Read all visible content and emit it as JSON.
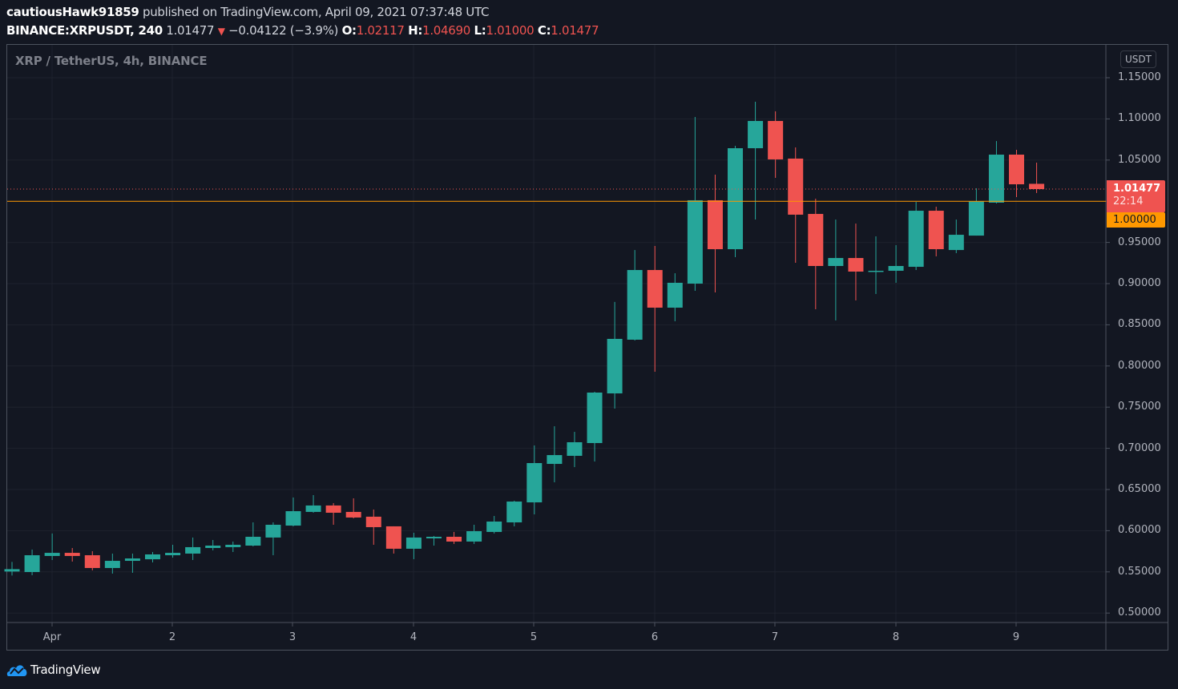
{
  "header": {
    "publisher": "cautiousHawk91859",
    "published_text": "published on TradingView.com, April 09, 2021 07:37:48 UTC",
    "symbol": "BINANCE:XRPUSDT, 240",
    "last_price": "1.01477",
    "change_icon": "triangle-down-icon",
    "change": "−0.04122 (−3.9%)",
    "o_label": "O:",
    "o_value": "1.02117",
    "h_label": "H:",
    "h_value": "1.04690",
    "l_label": "L:",
    "l_value": "1.01000",
    "c_label": "C:",
    "c_value": "1.01477"
  },
  "chart": {
    "title": "XRP / TetherUS, 4h, BINANCE",
    "currency": "USDT",
    "current_price_tag": "1.01477",
    "countdown": "22:14",
    "level_tag": "1.00000",
    "colors": {
      "background": "#131722",
      "grid": "#1e222d",
      "up": "#26a69a",
      "down": "#ef5350",
      "level_line": "#ff9800",
      "axis_text": "#b2b5be"
    }
  },
  "footer": {
    "brand": "TradingView",
    "brand_icon": "tradingview-cloud-icon"
  },
  "chart_data": {
    "type": "candlestick",
    "title": "XRP / TetherUS, 4h, BINANCE",
    "xlabel": "",
    "ylabel": "USDT",
    "ylim": [
      0.49,
      1.16
    ],
    "y_ticks": [
      "1.15000",
      "1.10000",
      "1.05000",
      "1.00000",
      "0.95000",
      "0.90000",
      "0.85000",
      "0.80000",
      "0.75000",
      "0.70000",
      "0.65000",
      "0.60000",
      "0.55000",
      "0.50000"
    ],
    "x_ticks": [
      "Apr",
      "2",
      "3",
      "4",
      "5",
      "6",
      "7",
      "8",
      "9"
    ],
    "grid": true,
    "horizontal_line": 1.0,
    "current_price": 1.01477,
    "candles": [
      {
        "o": 0.5504,
        "h": 0.5621,
        "l": 0.5455,
        "c": 0.5533
      },
      {
        "o": 0.5498,
        "h": 0.5771,
        "l": 0.5459,
        "c": 0.5702
      },
      {
        "o": 0.5693,
        "h": 0.5966,
        "l": 0.5644,
        "c": 0.5731
      },
      {
        "o": 0.5731,
        "h": 0.579,
        "l": 0.5625,
        "c": 0.5693
      },
      {
        "o": 0.5702,
        "h": 0.5751,
        "l": 0.5518,
        "c": 0.5547
      },
      {
        "o": 0.5547,
        "h": 0.5722,
        "l": 0.5479,
        "c": 0.5634
      },
      {
        "o": 0.5634,
        "h": 0.5722,
        "l": 0.5489,
        "c": 0.5663
      },
      {
        "o": 0.5653,
        "h": 0.5741,
        "l": 0.5615,
        "c": 0.5712
      },
      {
        "o": 0.5702,
        "h": 0.5829,
        "l": 0.5673,
        "c": 0.5731
      },
      {
        "o": 0.5722,
        "h": 0.5917,
        "l": 0.5644,
        "c": 0.58
      },
      {
        "o": 0.579,
        "h": 0.5887,
        "l": 0.5761,
        "c": 0.5819
      },
      {
        "o": 0.58,
        "h": 0.5868,
        "l": 0.5741,
        "c": 0.5829
      },
      {
        "o": 0.5819,
        "h": 0.6101,
        "l": 0.5809,
        "c": 0.5926
      },
      {
        "o": 0.5917,
        "h": 0.6101,
        "l": 0.5702,
        "c": 0.6072
      },
      {
        "o": 0.6062,
        "h": 0.6403,
        "l": 0.6053,
        "c": 0.6237
      },
      {
        "o": 0.6228,
        "h": 0.6432,
        "l": 0.6218,
        "c": 0.6306
      },
      {
        "o": 0.6306,
        "h": 0.6335,
        "l": 0.6072,
        "c": 0.6218
      },
      {
        "o": 0.6228,
        "h": 0.6393,
        "l": 0.615,
        "c": 0.616
      },
      {
        "o": 0.617,
        "h": 0.6257,
        "l": 0.5829,
        "c": 0.6043
      },
      {
        "o": 0.6053,
        "h": 0.6053,
        "l": 0.5722,
        "c": 0.5781
      },
      {
        "o": 0.5781,
        "h": 0.5975,
        "l": 0.5654,
        "c": 0.5917
      },
      {
        "o": 0.5907,
        "h": 0.5936,
        "l": 0.5819,
        "c": 0.5926
      },
      {
        "o": 0.5926,
        "h": 0.5985,
        "l": 0.5839,
        "c": 0.5868
      },
      {
        "o": 0.5868,
        "h": 0.6072,
        "l": 0.5839,
        "c": 0.5994
      },
      {
        "o": 0.5985,
        "h": 0.6179,
        "l": 0.5966,
        "c": 0.6111
      },
      {
        "o": 0.6101,
        "h": 0.6364,
        "l": 0.6053,
        "c": 0.6354
      },
      {
        "o": 0.6344,
        "h": 0.7035,
        "l": 0.6198,
        "c": 0.6821
      },
      {
        "o": 0.6811,
        "h": 0.7268,
        "l": 0.6588,
        "c": 0.6918
      },
      {
        "o": 0.6909,
        "h": 0.72,
        "l": 0.6772,
        "c": 0.7074
      },
      {
        "o": 0.7064,
        "h": 0.7687,
        "l": 0.684,
        "c": 0.7677
      },
      {
        "o": 0.7667,
        "h": 0.8777,
        "l": 0.7482,
        "c": 0.8329
      },
      {
        "o": 0.8319,
        "h": 0.9408,
        "l": 0.8309,
        "c": 0.9165
      },
      {
        "o": 0.9165,
        "h": 0.9457,
        "l": 0.793,
        "c": 0.8708
      },
      {
        "o": 0.8708,
        "h": 0.9126,
        "l": 0.8543,
        "c": 0.901
      },
      {
        "o": 0.9,
        "h": 1.1023,
        "l": 0.8913,
        "c": 1.0012
      },
      {
        "o": 1.0012,
        "h": 1.0323,
        "l": 0.8893,
        "c": 0.9418
      },
      {
        "o": 0.9418,
        "h": 1.0673,
        "l": 0.9321,
        "c": 1.0644
      },
      {
        "o": 1.0644,
        "h": 1.1208,
        "l": 0.9778,
        "c": 1.0975
      },
      {
        "o": 1.0975,
        "h": 1.1092,
        "l": 1.0284,
        "c": 1.0508
      },
      {
        "o": 1.0518,
        "h": 1.0654,
        "l": 0.9253,
        "c": 0.9837
      },
      {
        "o": 0.9846,
        "h": 1.0031,
        "l": 0.8689,
        "c": 0.9214
      },
      {
        "o": 0.9214,
        "h": 0.9778,
        "l": 0.8553,
        "c": 0.9311
      },
      {
        "o": 0.9311,
        "h": 0.9729,
        "l": 0.8796,
        "c": 0.9146
      },
      {
        "o": 0.9146,
        "h": 0.9574,
        "l": 0.8874,
        "c": 0.9156
      },
      {
        "o": 0.9156,
        "h": 0.9467,
        "l": 0.901,
        "c": 0.9214
      },
      {
        "o": 0.9204,
        "h": 0.9992,
        "l": 0.9165,
        "c": 0.9885
      },
      {
        "o": 0.9885,
        "h": 0.9934,
        "l": 0.9331,
        "c": 0.9418
      },
      {
        "o": 0.9408,
        "h": 0.9778,
        "l": 0.937,
        "c": 0.9593
      },
      {
        "o": 0.9583,
        "h": 1.0158,
        "l": 0.9583,
        "c": 1.0002
      },
      {
        "o": 0.9983,
        "h": 1.0731,
        "l": 0.9973,
        "c": 1.0566
      },
      {
        "o": 1.0566,
        "h": 1.0624,
        "l": 1.0051,
        "c": 1.0206
      },
      {
        "o": 1.02117,
        "h": 1.0469,
        "l": 1.01,
        "c": 1.01477
      }
    ]
  }
}
